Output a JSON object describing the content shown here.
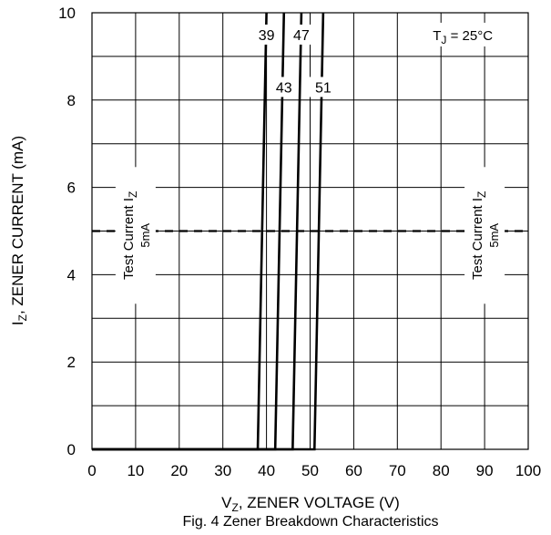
{
  "chart_data": {
    "type": "line",
    "title": "Fig. 4 Zener Breakdown Characteristics",
    "xlabel": {
      "main": "V",
      "sub": "Z",
      "rest": ", ZENER VOLTAGE (V)"
    },
    "ylabel": {
      "main": "I",
      "sub": "Z",
      "rest": ", ZENER CURRENT (mA)"
    },
    "xlim": [
      0,
      100
    ],
    "ylim": [
      0,
      10
    ],
    "x_ticks": [
      0,
      10,
      20,
      30,
      40,
      50,
      60,
      70,
      80,
      90,
      100
    ],
    "y_ticks": [
      0,
      2,
      4,
      6,
      8,
      10
    ],
    "grid": true,
    "series": [
      {
        "name": "39",
        "x": [
          0,
          38,
          40
        ],
        "y": [
          0,
          0,
          10
        ]
      },
      {
        "name": "43",
        "x": [
          0,
          42,
          44
        ],
        "y": [
          0,
          0,
          10
        ]
      },
      {
        "name": "47",
        "x": [
          0,
          46,
          48
        ],
        "y": [
          0,
          0,
          10
        ]
      },
      {
        "name": "51",
        "x": [
          0,
          51,
          53
        ],
        "y": [
          0,
          0,
          10
        ]
      }
    ],
    "test_current_line": {
      "y": 5
    },
    "annotations": {
      "temperature": {
        "main": "T",
        "sub": "J",
        "rest": " = 25°C"
      },
      "test_current": {
        "line1": "Test Current I",
        "line1_sub": "Z",
        "line2": "5mA"
      }
    },
    "label_placement": {
      "39": [
        40,
        9.5
      ],
      "47": [
        48,
        9.5
      ],
      "43": [
        44,
        8.3
      ],
      "51": [
        53,
        8.3
      ],
      "temperature": [
        85,
        9.5
      ],
      "test_left": [
        10,
        4.9
      ],
      "test_right": [
        90,
        4.9
      ]
    }
  }
}
